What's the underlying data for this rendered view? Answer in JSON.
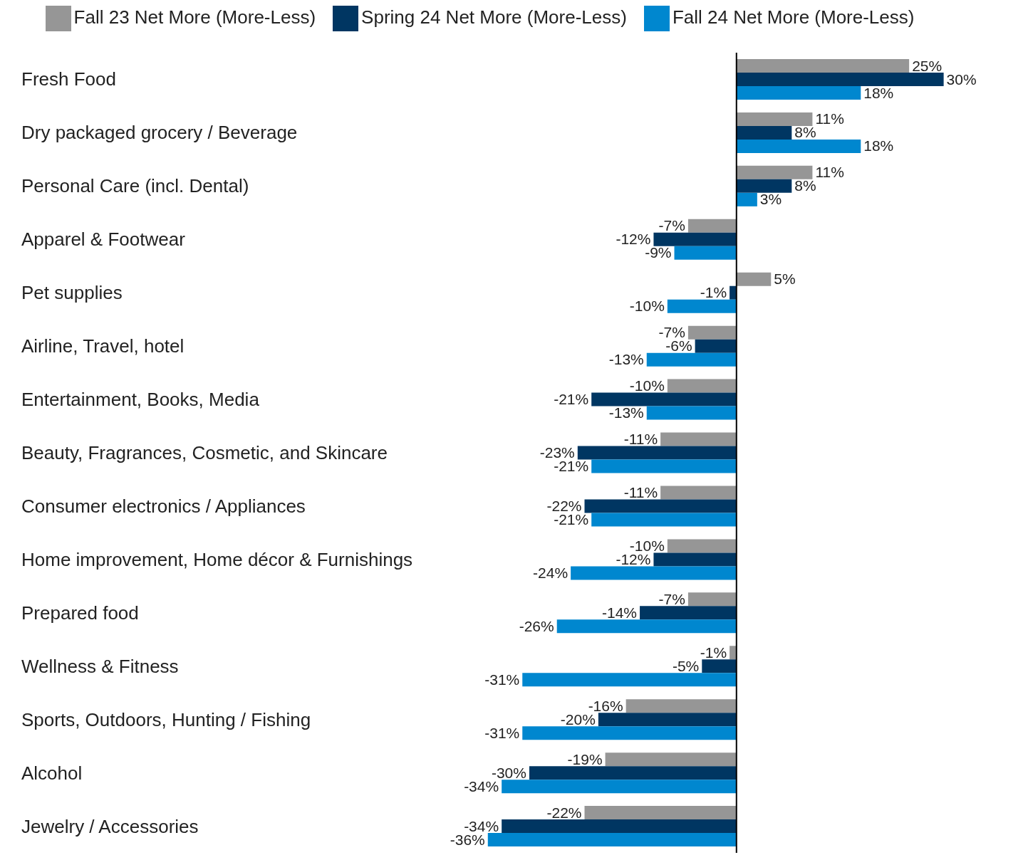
{
  "chart_data": {
    "type": "bar",
    "orientation": "horizontal",
    "legend": "top",
    "categories": [
      "Fresh Food",
      "Dry packaged grocery / Beverage",
      "Personal Care (incl. Dental)",
      "Apparel & Footwear",
      "Pet supplies",
      "Airline, Travel, hotel",
      "Entertainment, Books, Media",
      "Beauty, Fragrances, Cosmetic, and Skincare",
      "Consumer electronics / Appliances",
      "Home improvement, Home décor & Furnishings",
      "Prepared food",
      "Wellness & Fitness",
      "Sports, Outdoors, Hunting / Fishing",
      "Alcohol",
      "Jewelry / Accessories"
    ],
    "series": [
      {
        "name": "Fall 23 Net More (More-Less)",
        "color": "#969696",
        "values": [
          25,
          11,
          11,
          -7,
          5,
          -7,
          -10,
          -11,
          -11,
          -10,
          -7,
          -1,
          -16,
          -19,
          -22
        ],
        "value_labels": [
          "25%",
          "11%",
          "11%",
          "-7%",
          "5%",
          "-7%",
          "-10%",
          "-11%",
          "-11%",
          "-10%",
          "-7%",
          "-1%",
          "-16%",
          "-19%",
          "-22%"
        ]
      },
      {
        "name": "Spring 24 Net More (More-Less)",
        "color": "#003662",
        "values": [
          30,
          8,
          8,
          -12,
          -1,
          -6,
          -21,
          -23,
          -22,
          -12,
          -14,
          -5,
          -20,
          -30,
          -34
        ],
        "value_labels": [
          "30%",
          "8%",
          "8%",
          "-12%",
          "-1%",
          "-6%",
          "-21%",
          "-23%",
          "-22%",
          "-12%",
          "-14%",
          "-5%",
          "-20%",
          "-30%",
          "-34%"
        ]
      },
      {
        "name": "Fall 24 Net More (More-Less)",
        "color": "#0087cf",
        "values": [
          18,
          18,
          3,
          -9,
          -10,
          -13,
          -13,
          -21,
          -21,
          -24,
          -26,
          -31,
          -31,
          -34,
          -36
        ],
        "value_labels": [
          "18%",
          "18%",
          "3%",
          "-9%",
          "-10%",
          "-13%",
          "-13%",
          "-21%",
          "-21%",
          "-24%",
          "-26%",
          "-31%",
          "-31%",
          "-34%",
          "-36%"
        ]
      }
    ],
    "ref_lines": [
      {
        "axis": "x",
        "value": 0,
        "color": "#000000"
      }
    ]
  }
}
